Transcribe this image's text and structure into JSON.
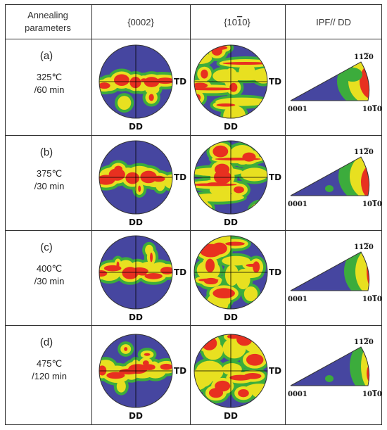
{
  "figure": {
    "header": {
      "col1_line1": "Annealing",
      "col1_line2": "parameters",
      "col2": "{0002}",
      "col3": "{10",
      "col3_bar": "1",
      "col3_end": "0}",
      "col4": "IPF// DD"
    },
    "axes": {
      "td": "TD",
      "dd": "DD"
    },
    "ipf_labels": {
      "a": "0001",
      "b": "10",
      "b_bar": "1",
      "b_end": "0",
      "c": "11",
      "c_bar": "2",
      "c_end": "0"
    },
    "rows": [
      {
        "id": "(a)",
        "temp": "325℃",
        "time": "/60 min"
      },
      {
        "id": "(b)",
        "temp": "375℃",
        "time": "/30 min"
      },
      {
        "id": "(c)",
        "temp": "400℃",
        "time": "/30 min"
      },
      {
        "id": "(d)",
        "temp": "475℃",
        "time": "/120 min"
      }
    ],
    "colors": {
      "background": "#4646a0",
      "low": "#3cac3c",
      "mid": "#e8e020",
      "high": "#e83020",
      "grid": "#000000"
    }
  }
}
